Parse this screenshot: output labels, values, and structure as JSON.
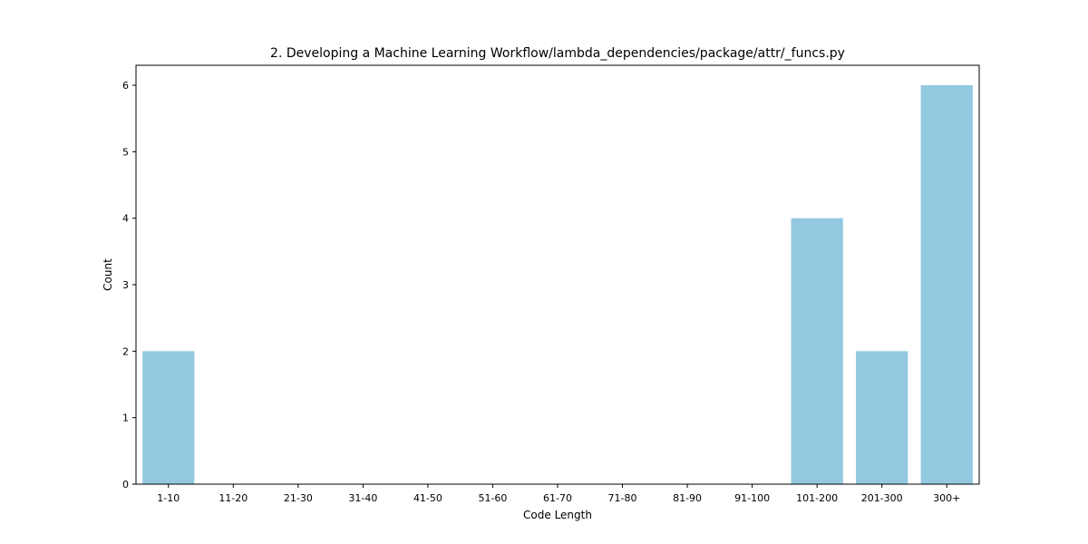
{
  "chart_data": {
    "type": "bar",
    "title": "2. Developing a Machine Learning Workflow/lambda_dependencies/package/attr/_funcs.py",
    "xlabel": "Code Length",
    "ylabel": "Count",
    "categories": [
      "1-10",
      "11-20",
      "21-30",
      "31-40",
      "41-50",
      "51-60",
      "61-70",
      "71-80",
      "81-90",
      "91-100",
      "101-200",
      "201-300",
      "300+"
    ],
    "values": [
      2,
      0,
      0,
      0,
      0,
      0,
      0,
      0,
      0,
      0,
      4,
      2,
      6
    ],
    "ylim": [
      0,
      6.3
    ],
    "yticks": [
      "0",
      "1",
      "2",
      "3",
      "4",
      "5",
      "6"
    ],
    "grid": false,
    "legend": "none",
    "bar_color": "#92c9e0"
  }
}
